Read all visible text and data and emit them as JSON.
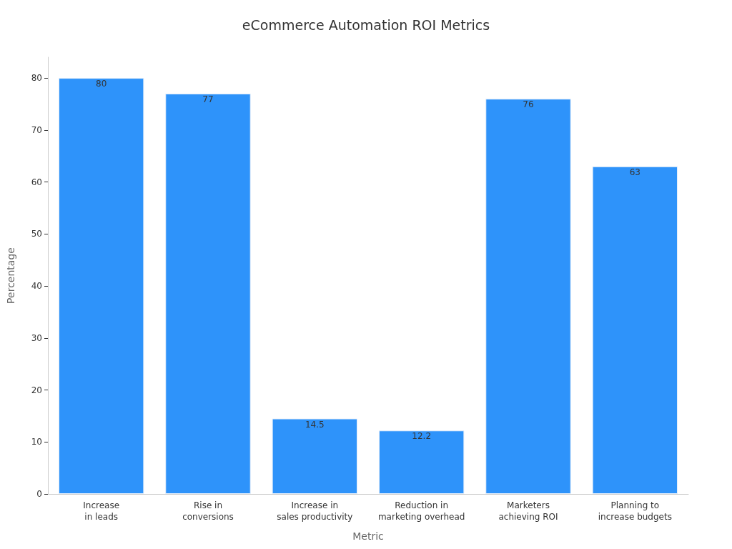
{
  "chart_data": {
    "type": "bar",
    "title": "eCommerce Automation ROI Metrics",
    "xlabel": "Metric",
    "ylabel": "Percentage",
    "categories": [
      "Increase\nin leads",
      "Rise in\nconversions",
      "Increase in\nsales productivity",
      "Reduction in\nmarketing overhead",
      "Marketers\nachieving ROI",
      "Planning to\nincrease budgets"
    ],
    "values": [
      80,
      77,
      14.5,
      12.2,
      76,
      63
    ],
    "color": "#2e93fa",
    "ylim": [
      0,
      84
    ],
    "yticks": [
      0,
      10,
      20,
      30,
      40,
      50,
      60,
      70,
      80
    ],
    "data_labels": true
  }
}
